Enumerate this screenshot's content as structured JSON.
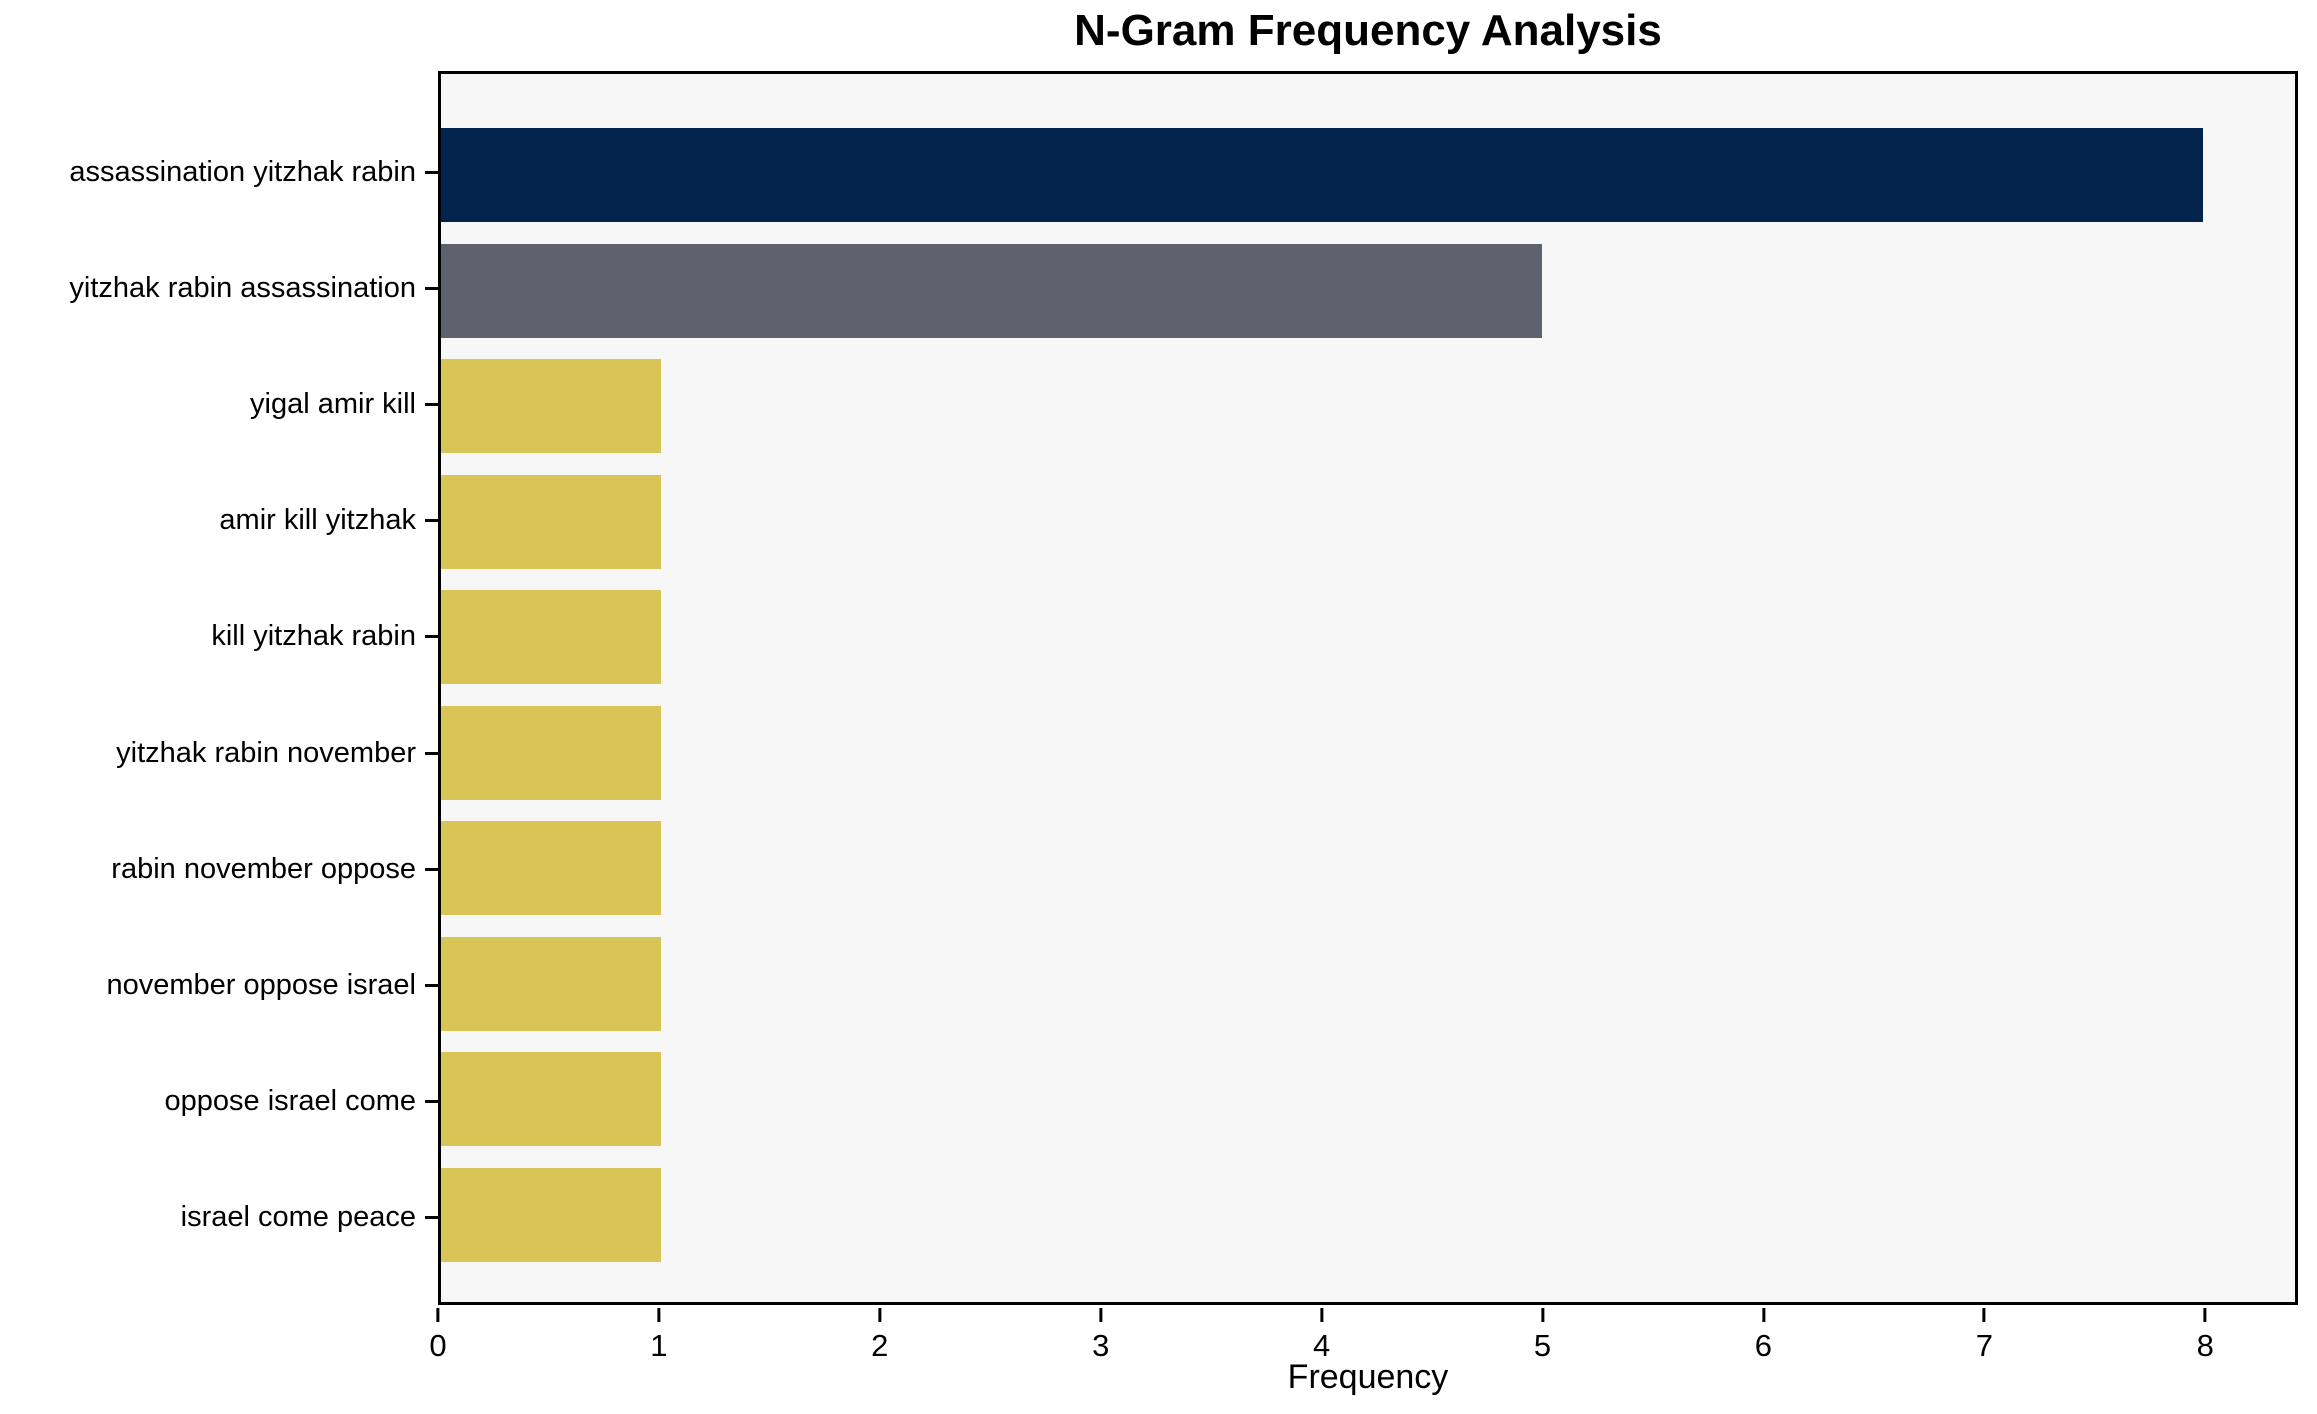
{
  "chart_data": {
    "type": "bar",
    "orientation": "horizontal",
    "title": "N-Gram Frequency Analysis",
    "xlabel": "Frequency",
    "ylabel": "",
    "categories": [
      "assassination yitzhak rabin",
      "yitzhak rabin assassination",
      "yigal amir kill",
      "amir kill yitzhak",
      "kill yitzhak rabin",
      "yitzhak rabin november",
      "rabin november oppose",
      "november oppose israel",
      "oppose israel come",
      "israel come peace"
    ],
    "values": [
      8,
      5,
      1,
      1,
      1,
      1,
      1,
      1,
      1,
      1
    ],
    "bar_colors": [
      "#02234C",
      "#5F626D",
      "#D9C456",
      "#D9C456",
      "#D9C456",
      "#D9C456",
      "#D9C456",
      "#D9C456",
      "#D9C456",
      "#D9C456"
    ],
    "xticks": [
      0,
      1,
      2,
      3,
      4,
      5,
      6,
      7,
      8
    ],
    "xlim": [
      0,
      8.42
    ],
    "grid": false,
    "legend": null,
    "plot_background": "#F7F7F8",
    "figure_background": "#FFFFFF",
    "spine_color": "#000000",
    "text_color": "#000000"
  }
}
